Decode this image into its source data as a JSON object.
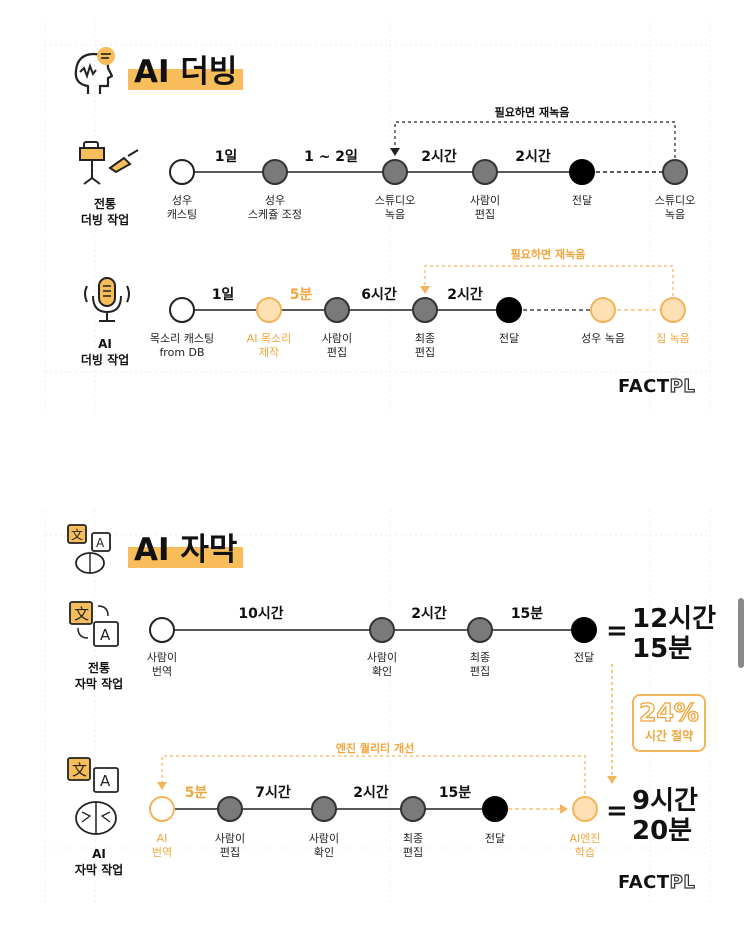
{
  "dubbing": {
    "title": "AI 더빙",
    "traditional": {
      "label_line1": "전통",
      "label_line2": "더빙 작업",
      "nodes": [
        {
          "line1": "성우",
          "line2": "캐스팅"
        },
        {
          "line1": "성우",
          "line2": "스케쥴 조정"
        },
        {
          "line1": "스튜디오",
          "line2": "녹음"
        },
        {
          "line1": "사람이",
          "line2": "편집"
        },
        {
          "line1": "전달",
          "line2": ""
        },
        {
          "line1": "스튜디오",
          "line2": "녹음"
        }
      ],
      "durations": [
        "1일",
        "1 ~ 2일",
        "2시간",
        "2시간"
      ],
      "loop_note": "필요하면 재녹음"
    },
    "ai": {
      "label_line1": "AI",
      "label_line2": "더빙 작업",
      "nodes": [
        {
          "line1": "목소리 캐스팅",
          "line2": "from DB"
        },
        {
          "line1": "AI 목소리",
          "line2": "제작"
        },
        {
          "line1": "사람이",
          "line2": "편집"
        },
        {
          "line1": "최종",
          "line2": "편집"
        },
        {
          "line1": "전달",
          "line2": ""
        },
        {
          "line1": "성우 녹음",
          "line2": ""
        },
        {
          "line1": "집 녹음",
          "line2": ""
        }
      ],
      "durations": [
        "1일",
        "5분",
        "6시간",
        "2시간"
      ],
      "loop_note": "필요하면 재녹음"
    },
    "logo_a": "FACT",
    "logo_b": "PL"
  },
  "subtitle": {
    "title": "AI 자막",
    "traditional": {
      "label_line1": "전통",
      "label_line2": "자막 작업",
      "nodes": [
        {
          "line1": "사람이",
          "line2": "번역"
        },
        {
          "line1": "사람이",
          "line2": "확인"
        },
        {
          "line1": "최종",
          "line2": "편집"
        },
        {
          "line1": "전달",
          "line2": ""
        }
      ],
      "durations": [
        "10시간",
        "2시간",
        "15분"
      ],
      "total_line1": "12시간",
      "total_line2": "15분"
    },
    "ai": {
      "label_line1": "AI",
      "label_line2": "자막 작업",
      "nodes": [
        {
          "line1": "AI",
          "line2": "번역"
        },
        {
          "line1": "사람이",
          "line2": "편집"
        },
        {
          "line1": "사람이",
          "line2": "확인"
        },
        {
          "line1": "최종",
          "line2": "편집"
        },
        {
          "line1": "전달",
          "line2": ""
        },
        {
          "line1": "AI엔진",
          "line2": "학습"
        }
      ],
      "durations": [
        "5분",
        "7시간",
        "2시간",
        "15분"
      ],
      "loop_note": "엔진 퀄리티 개선",
      "total_line1": "9시간",
      "total_line2": "20분"
    },
    "saving_value": "24%",
    "saving_label": "시간 절약",
    "equals": "=",
    "logo_a": "FACT",
    "logo_b": "PL"
  },
  "colors": {
    "accent": "#f6bd5a",
    "orange_text": "#f0a63c",
    "gray_node": "#7a7a7a"
  }
}
